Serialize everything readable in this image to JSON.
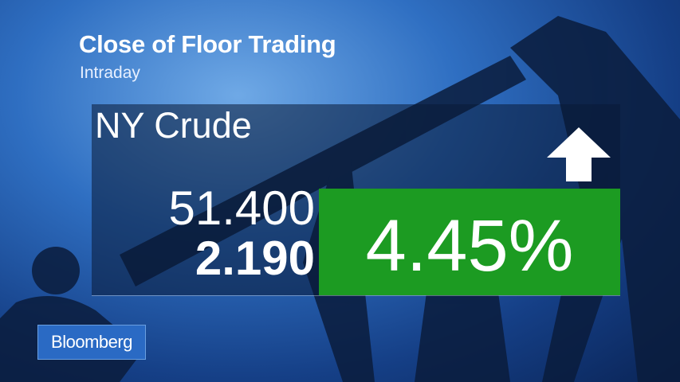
{
  "header": {
    "title": "Close of Floor Trading",
    "subtitle": "Intraday"
  },
  "quote": {
    "name": "NY Crude",
    "price": "51.400",
    "change": "2.190",
    "percent_change": "4.45%",
    "direction": "up",
    "direction_icon": "arrow-up-icon"
  },
  "colors": {
    "positive": "#1c9b22",
    "logo_bg": "#2a6ac4"
  },
  "brand": {
    "logo": "Bloomberg"
  }
}
